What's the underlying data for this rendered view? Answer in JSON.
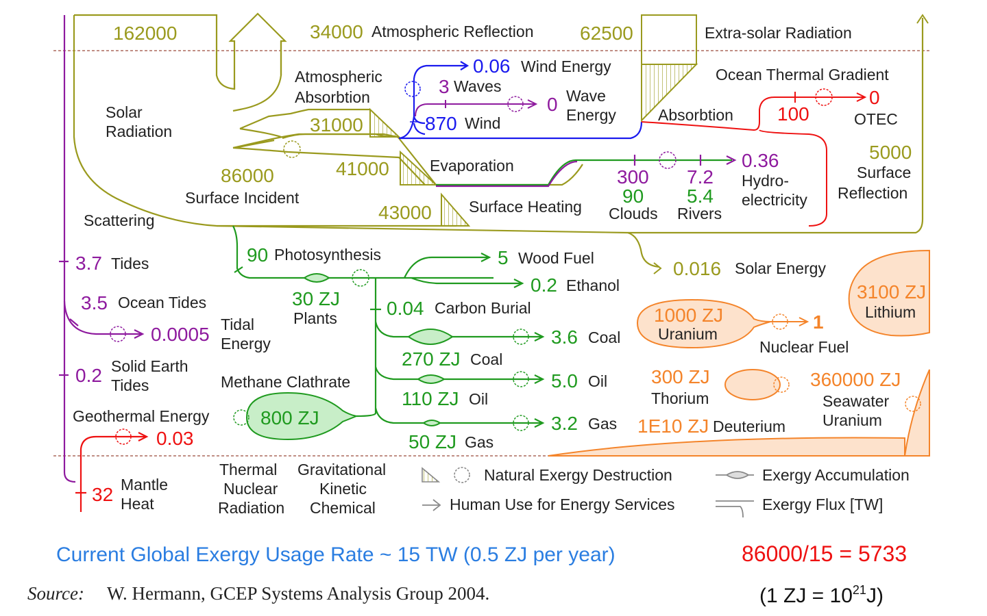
{
  "colors": {
    "solar": "#9a9a1e",
    "blue": "#1a1aee",
    "purple": "#8e1a9e",
    "green": "#1f9a1f",
    "red": "#ee1111",
    "orange": "#f4842a",
    "orange_fill": "#fde2cc",
    "green_fill": "#c8eec8",
    "dark": "#222222",
    "footer_blue": "#2a7de1"
  },
  "solar": {
    "total": "162000",
    "atm_reflection_value": "34000",
    "atm_reflection_label": "Atmospheric Reflection",
    "extra_solar_value": "62500",
    "extra_solar_label": "Extra-solar Radiation",
    "solar_radiation_l1": "Solar",
    "solar_radiation_l2": "Radiation",
    "atm_absorption_l1": "Atmospheric",
    "atm_absorption_l2": "Absorbtion",
    "atm_absorption_value": "31000",
    "surface_incident_value": "86000",
    "surface_incident_label": "Surface Incident",
    "evaporation_value": "41000",
    "evaporation_label": "Evaporation",
    "surface_heating_value": "43000",
    "surface_heating_label": "Surface Heating",
    "scattering_label": "Scattering",
    "absorption_label": "Absorbtion",
    "surface_reflection_value": "5000",
    "surface_reflection_l1": "Surface",
    "surface_reflection_l2": "Reflection",
    "solar_energy_value": "0.016",
    "solar_energy_label": "Solar Energy"
  },
  "wind": {
    "wind_energy_value": "0.06",
    "wind_energy_label": "Wind Energy",
    "waves_value": "3",
    "waves_label": "Waves",
    "wave_energy_value": "0",
    "wave_energy_l1": "Wave",
    "wave_energy_l2": "Energy",
    "wind_value": "870",
    "wind_label": "Wind"
  },
  "ocean_thermal": {
    "label": "Ocean Thermal Gradient",
    "value": "100",
    "otec_value": "0",
    "otec_label": "OTEC"
  },
  "hydro": {
    "clouds_v1": "300",
    "clouds_v2": "90",
    "clouds_label": "Clouds",
    "rivers_v1": "7.2",
    "rivers_v2": "5.4",
    "rivers_label": "Rivers",
    "hydro_value": "0.36",
    "hydro_l1": "Hydro-",
    "hydro_l2": "electricity"
  },
  "tides": {
    "tides_value": "3.7",
    "tides_label": "Tides",
    "ocean_tides_value": "3.5",
    "ocean_tides_label": "Ocean Tides",
    "tidal_energy_value": "0.0005",
    "tidal_energy_l1": "Tidal",
    "tidal_energy_l2": "Energy",
    "solid_earth_value": "0.2",
    "solid_earth_l1": "Solid Earth",
    "solid_earth_l2": "Tides"
  },
  "geothermal": {
    "label": "Geothermal Energy",
    "value": "0.03",
    "mantle_value": "32",
    "mantle_l1": "Mantle",
    "mantle_l2": "Heat"
  },
  "bio": {
    "photosynthesis_value": "90",
    "photosynthesis_label": "Photosynthesis",
    "plants_value": "30 ZJ",
    "plants_label": "Plants",
    "wood_value": "5",
    "wood_label": "Wood Fuel",
    "ethanol_value": "0.2",
    "ethanol_label": "Ethanol",
    "carbon_value": "0.04",
    "carbon_label": "Carbon Burial",
    "coal_value": "3.6",
    "coal_label": "Coal",
    "coal_stock": "270 ZJ",
    "coal_stock_label": "Coal",
    "oil_value": "5.0",
    "oil_label": "Oil",
    "oil_stock": "110 ZJ",
    "oil_stock_label": "Oil",
    "gas_value": "3.2",
    "gas_label": "Gas",
    "gas_stock": "50 ZJ",
    "gas_stock_label": "Gas",
    "methane_label": "Methane Clathrate",
    "methane_value": "800 ZJ"
  },
  "nuclear": {
    "uranium_value": "1000 ZJ",
    "uranium_label": "Uranium",
    "nuclear_fuel_value": "1",
    "nuclear_fuel_label": "Nuclear Fuel",
    "lithium_value": "3100 ZJ",
    "lithium_label": "Lithium",
    "thorium_value": "300 ZJ",
    "thorium_label": "Thorium",
    "seawater_value": "360000 ZJ",
    "seawater_l1": "Seawater",
    "seawater_l2": "Uranium",
    "deuterium_value_base": "1E10 ZJ",
    "deuterium_label": "Deuterium"
  },
  "legend": {
    "thermal": "Thermal",
    "nuclear": "Nuclear",
    "radiation": "Radiation",
    "gravitational": "Gravitational",
    "kinetic": "Kinetic",
    "chemical": "Chemical",
    "natural_destruction": "Natural Exergy Destruction",
    "human_use": "Human Use for Energy Services",
    "accumulation": "Exergy Accumulation",
    "flux": "Exergy Flux [TW]"
  },
  "footer": {
    "usage": "Current Global Exergy Usage Rate ~ 15 TW (0.5 ZJ per year)",
    "ratio": "86000/15 = 5733",
    "source_label": "Source:",
    "source_text": "W. Hermann, GCEP Systems Analysis Group 2004.",
    "zj_prefix": "(1 ZJ = 10",
    "zj_exp": "21",
    "zj_suffix": "J)"
  }
}
